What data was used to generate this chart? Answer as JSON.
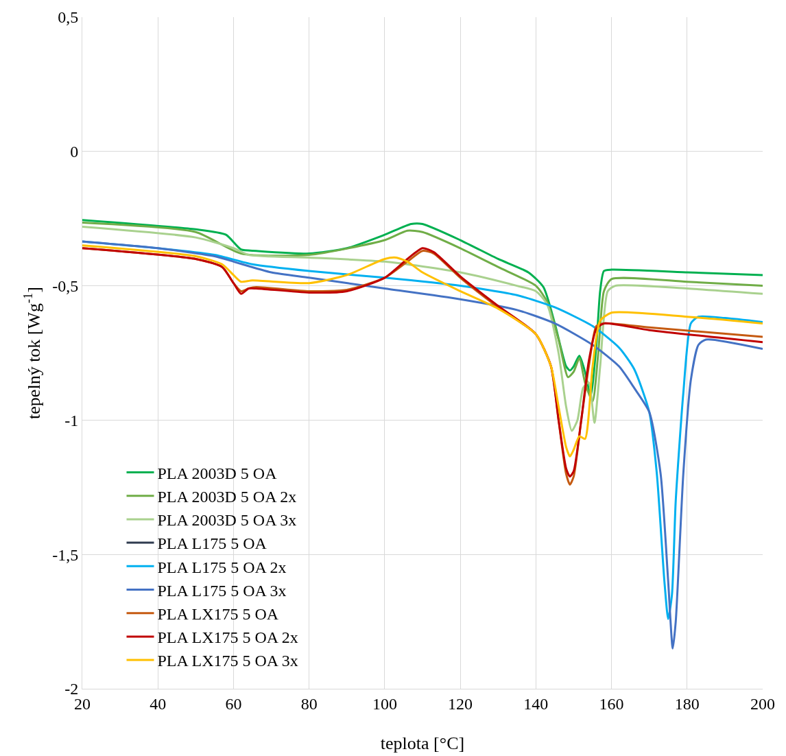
{
  "chart_data": {
    "type": "line",
    "xlabel": "teplota [°C]",
    "ylabel": "tepelný tok [Wg$^{-1}$]",
    "xlim": [
      20,
      200
    ],
    "xticks": [
      20,
      40,
      60,
      80,
      100,
      120,
      140,
      160,
      180,
      200
    ],
    "ylim": [
      -2,
      0.5
    ],
    "yticks": [
      {
        "value": -2,
        "label": "-2"
      },
      {
        "value": -1.5,
        "label": "-1,5"
      },
      {
        "value": -1,
        "label": "-1"
      },
      {
        "value": -0.5,
        "label": "-0,5"
      },
      0,
      {
        "value": 0.5,
        "label": "0,5"
      }
    ],
    "grid": true,
    "legend": "bottom left",
    "marker": "none",
    "line_style": "solid",
    "series": [
      {
        "name": "PLA 2003D 5 OA",
        "color": "#00b050",
        "x": [
          20,
          50,
          58,
          62,
          66,
          80,
          90,
          100,
          107,
          110,
          120,
          130,
          138,
          142,
          145,
          148,
          149,
          150,
          151.5,
          153,
          154.5,
          156,
          157,
          158,
          160,
          180,
          200
        ],
        "values": [
          -0.255,
          -0.29,
          -0.31,
          -0.365,
          -0.37,
          -0.38,
          -0.36,
          -0.31,
          -0.27,
          -0.27,
          -0.33,
          -0.4,
          -0.45,
          -0.505,
          -0.64,
          -0.8,
          -0.815,
          -0.8,
          -0.76,
          -0.82,
          -0.91,
          -0.72,
          -0.52,
          -0.445,
          -0.44,
          -0.45,
          -0.46
        ]
      },
      {
        "name": "PLA 2003D 5 OA 2x",
        "color": "#70ad47",
        "x": [
          20,
          50,
          62,
          80,
          100,
          106,
          110,
          120,
          130,
          140,
          143,
          146,
          148.5,
          150,
          151.5,
          153,
          155,
          156.5,
          158,
          160,
          180,
          200
        ],
        "values": [
          -0.265,
          -0.3,
          -0.38,
          -0.385,
          -0.33,
          -0.295,
          -0.3,
          -0.36,
          -0.43,
          -0.5,
          -0.56,
          -0.7,
          -0.84,
          -0.82,
          -0.77,
          -0.86,
          -0.93,
          -0.75,
          -0.52,
          -0.475,
          -0.485,
          -0.5
        ]
      },
      {
        "name": "PLA 2003D 5 OA 3x",
        "color": "#a9d18e",
        "x": [
          20,
          50,
          60,
          64,
          80,
          100,
          120,
          135,
          140,
          143,
          146,
          148,
          149.5,
          151,
          152.5,
          154,
          155.5,
          157,
          159,
          161,
          180,
          200
        ],
        "values": [
          -0.28,
          -0.32,
          -0.36,
          -0.385,
          -0.395,
          -0.41,
          -0.45,
          -0.5,
          -0.52,
          -0.57,
          -0.75,
          -0.95,
          -1.04,
          -1,
          -0.88,
          -0.86,
          -1.01,
          -0.8,
          -0.52,
          -0.5,
          -0.51,
          -0.53
        ]
      },
      {
        "name": "PLA L175 5 OA",
        "color": "#2f3b4f"
      },
      {
        "name": "PLA L175 5 OA 2x",
        "color": "#00b0f0",
        "x": [
          20,
          40,
          55,
          65,
          80,
          100,
          120,
          135,
          145,
          155,
          162,
          166,
          170,
          172,
          174,
          175,
          176,
          177,
          179,
          181,
          183,
          190,
          200
        ],
        "values": [
          -0.335,
          -0.36,
          -0.385,
          -0.42,
          -0.445,
          -0.47,
          -0.5,
          -0.535,
          -0.58,
          -0.65,
          -0.73,
          -0.81,
          -0.97,
          -1.2,
          -1.6,
          -1.74,
          -1.65,
          -1.3,
          -0.9,
          -0.64,
          -0.615,
          -0.62,
          -0.635
        ]
      },
      {
        "name": "PLA L175 5 OA 3x",
        "color": "#4472c4",
        "x": [
          20,
          40,
          55,
          60,
          70,
          80,
          100,
          120,
          135,
          145,
          155,
          162,
          166,
          170,
          173,
          175,
          176.2,
          177,
          179,
          181,
          183,
          185,
          200
        ],
        "values": [
          -0.335,
          -0.36,
          -0.39,
          -0.41,
          -0.45,
          -0.47,
          -0.51,
          -0.55,
          -0.59,
          -0.64,
          -0.72,
          -0.8,
          -0.88,
          -0.97,
          -1.2,
          -1.6,
          -1.85,
          -1.75,
          -1.2,
          -0.85,
          -0.72,
          -0.7,
          -0.735
        ]
      },
      {
        "name": "PLA LX175 5 OA",
        "color": "#c55a11",
        "x": [
          20,
          50,
          57,
          60,
          62,
          64,
          66,
          80,
          90,
          100,
          106,
          110,
          113,
          120,
          130,
          140,
          144,
          146,
          148,
          149,
          150,
          152,
          154,
          156,
          158,
          170,
          200
        ],
        "values": [
          -0.36,
          -0.4,
          -0.43,
          -0.49,
          -0.52,
          -0.51,
          -0.505,
          -0.52,
          -0.515,
          -0.47,
          -0.41,
          -0.37,
          -0.38,
          -0.47,
          -0.58,
          -0.68,
          -0.8,
          -1,
          -1.2,
          -1.24,
          -1.21,
          -1,
          -0.8,
          -0.65,
          -0.64,
          -0.655,
          -0.69
        ]
      },
      {
        "name": "PLA LX175 5 OA 2x",
        "color": "#c00000",
        "x": [
          20,
          50,
          57,
          60,
          62,
          64,
          66,
          80,
          90,
          100,
          106,
          110,
          113,
          120,
          130,
          140,
          144,
          146,
          148,
          149,
          150,
          152,
          154,
          156,
          158,
          170,
          200
        ],
        "values": [
          -0.36,
          -0.4,
          -0.43,
          -0.49,
          -0.53,
          -0.51,
          -0.51,
          -0.525,
          -0.52,
          -0.47,
          -0.4,
          -0.36,
          -0.375,
          -0.465,
          -0.575,
          -0.68,
          -0.8,
          -1,
          -1.18,
          -1.21,
          -1.19,
          -1,
          -0.78,
          -0.66,
          -0.64,
          -0.665,
          -0.71
        ]
      },
      {
        "name": "PLA LX175 5 OA 3x",
        "color": "#ffc000",
        "x": [
          20,
          50,
          57,
          60,
          62,
          65,
          80,
          90,
          100,
          103,
          106,
          110,
          120,
          130,
          140,
          144,
          146,
          148,
          149,
          150,
          151.5,
          153,
          155,
          157,
          160,
          180,
          200
        ],
        "values": [
          -0.35,
          -0.39,
          -0.42,
          -0.46,
          -0.485,
          -0.48,
          -0.49,
          -0.46,
          -0.4,
          -0.395,
          -0.41,
          -0.45,
          -0.52,
          -0.585,
          -0.68,
          -0.8,
          -0.95,
          -1.1,
          -1.135,
          -1.11,
          -1.06,
          -1.07,
          -0.8,
          -0.63,
          -0.6,
          -0.615,
          -0.64
        ]
      }
    ]
  }
}
